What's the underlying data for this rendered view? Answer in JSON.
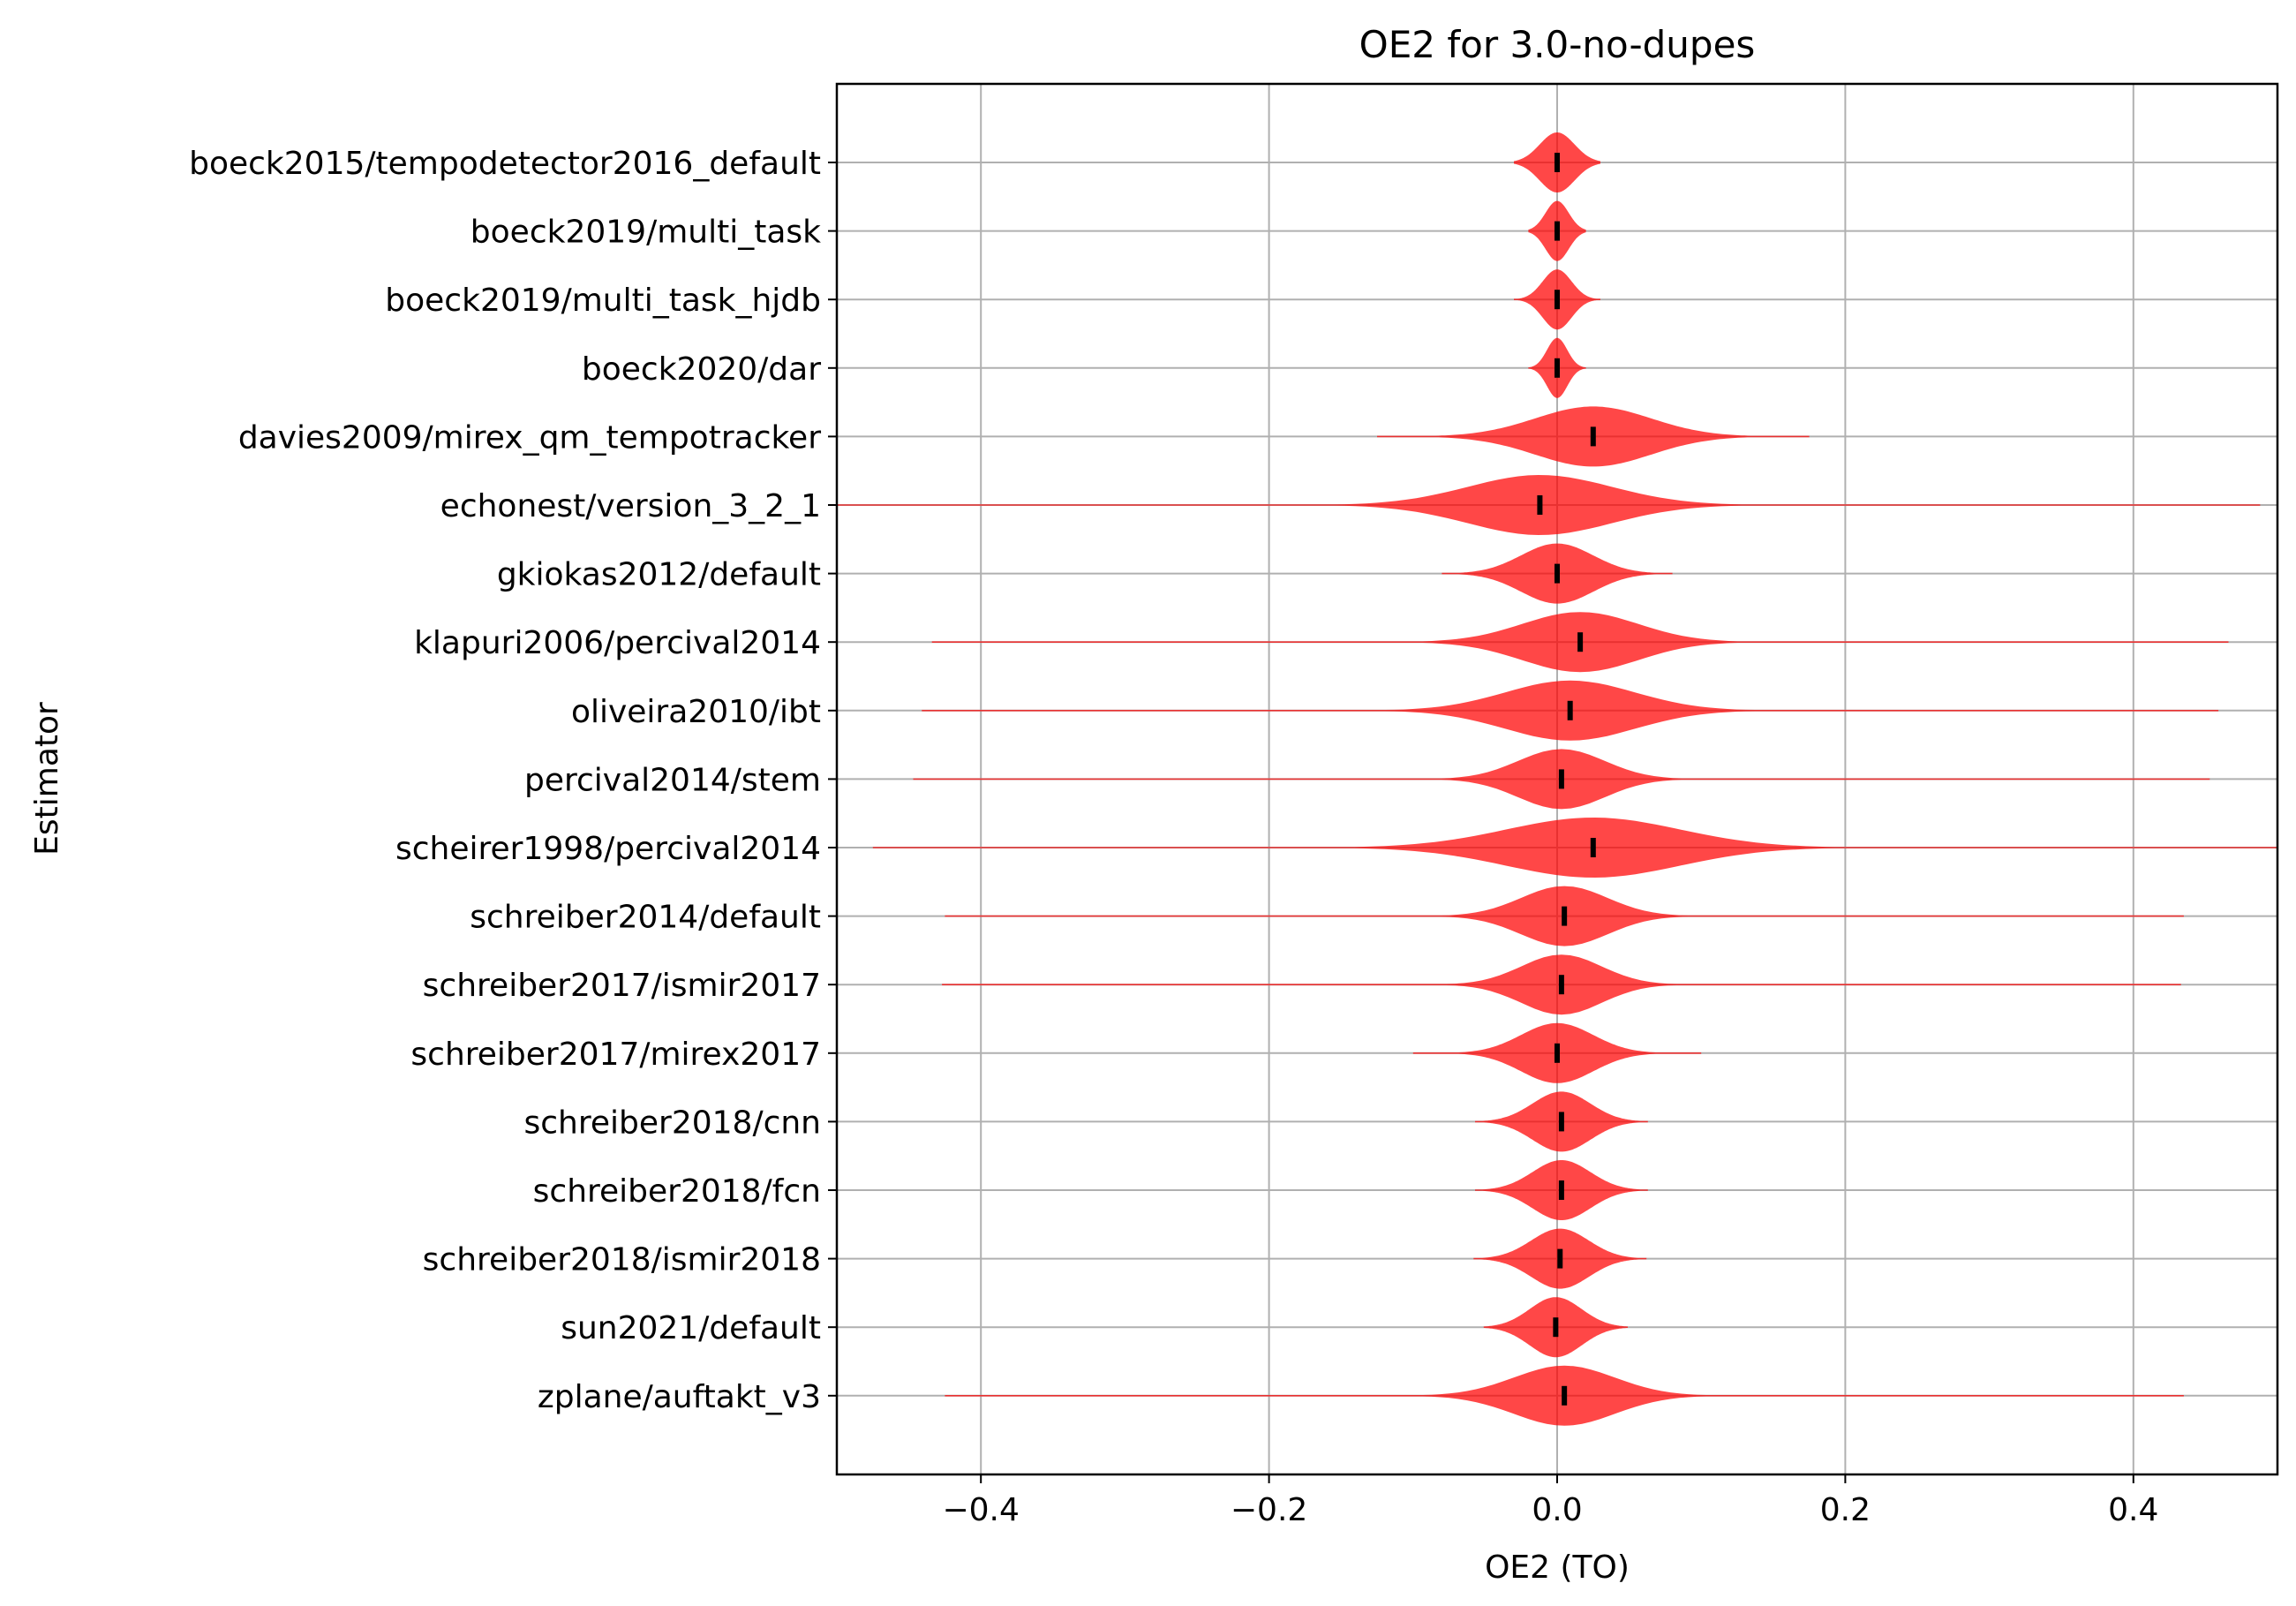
{
  "chart_data": {
    "type": "violin",
    "orientation": "horizontal",
    "title": "OE2 for 3.0-no-dupes",
    "xlabel": "OE2 (TO)",
    "ylabel": "Estimator",
    "xlim": [
      -0.5,
      0.5
    ],
    "xticks": [
      -0.4,
      -0.2,
      0.0,
      0.2,
      0.4
    ],
    "xtick_labels": [
      "−0.4",
      "−0.2",
      "0.0",
      "0.2",
      "0.4"
    ],
    "grid": true,
    "violin_color": "#ff0000",
    "median_color": "#000000",
    "estimators": [
      {
        "name": "boeck2015/tempodetector2016_default",
        "median": 0.0,
        "spread": 0.012,
        "tail": 0.03
      },
      {
        "name": "boeck2019/multi_task",
        "median": 0.0,
        "spread": 0.008,
        "tail": 0.02
      },
      {
        "name": "boeck2019/multi_task_hjdb",
        "median": 0.0,
        "spread": 0.01,
        "tail": 0.03
      },
      {
        "name": "boeck2020/dar",
        "median": 0.0,
        "spread": 0.007,
        "tail": 0.02
      },
      {
        "name": "davies2009/mirex_qm_tempotracker",
        "median": 0.025,
        "spread": 0.04,
        "tail": 0.15
      },
      {
        "name": "echonest/version_3_2_1",
        "median": -0.012,
        "spread": 0.05,
        "tail": 0.5
      },
      {
        "name": "gkiokas2012/default",
        "median": 0.0,
        "spread": 0.025,
        "tail": 0.08
      },
      {
        "name": "klapuri2006/percival2014",
        "median": 0.016,
        "spread": 0.04,
        "tail": 0.45
      },
      {
        "name": "oliveira2010/ibt",
        "median": 0.009,
        "spread": 0.045,
        "tail": 0.45
      },
      {
        "name": "percival2014/stem",
        "median": 0.003,
        "spread": 0.03,
        "tail": 0.45
      },
      {
        "name": "scheirer1998/percival2014",
        "median": 0.025,
        "spread": 0.06,
        "tail": 0.5
      },
      {
        "name": "schreiber2014/default",
        "median": 0.005,
        "spread": 0.03,
        "tail": 0.43
      },
      {
        "name": "schreiber2017/ismir2017",
        "median": 0.003,
        "spread": 0.028,
        "tail": 0.43
      },
      {
        "name": "schreiber2017/mirex2017",
        "median": 0.0,
        "spread": 0.025,
        "tail": 0.1
      },
      {
        "name": "schreiber2018/cnn",
        "median": 0.003,
        "spread": 0.02,
        "tail": 0.06
      },
      {
        "name": "schreiber2018/fcn",
        "median": 0.003,
        "spread": 0.02,
        "tail": 0.06
      },
      {
        "name": "schreiber2018/ismir2018",
        "median": 0.002,
        "spread": 0.02,
        "tail": 0.06
      },
      {
        "name": "sun2021/default",
        "median": -0.001,
        "spread": 0.018,
        "tail": 0.05
      },
      {
        "name": "zplane/auftakt_v3",
        "median": 0.005,
        "spread": 0.035,
        "tail": 0.43
      }
    ]
  }
}
